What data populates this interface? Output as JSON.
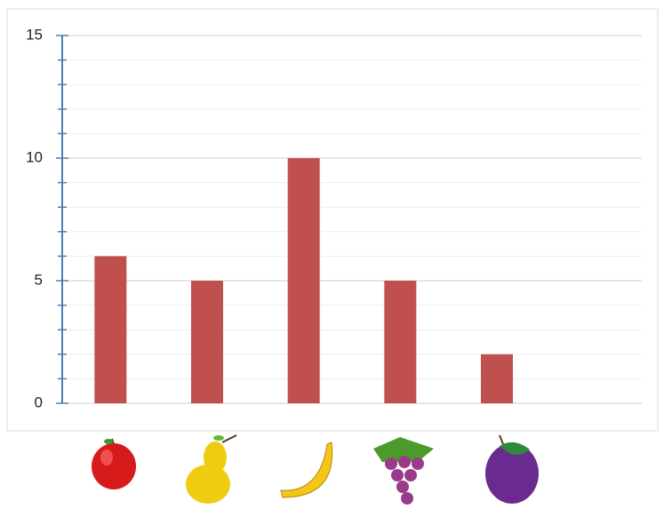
{
  "chart_data": {
    "type": "bar",
    "categories": [
      null,
      null,
      null,
      null,
      null,
      null
    ],
    "values": [
      6,
      5,
      10,
      5,
      2,
      null
    ],
    "color": "#c0504d",
    "ylim": [
      0,
      15
    ],
    "yticks": [
      0,
      5,
      10,
      15
    ],
    "minor_yticks": [
      1,
      2,
      3,
      4,
      6,
      7,
      8,
      9,
      11,
      12,
      13,
      14
    ],
    "grid": true
  }
}
